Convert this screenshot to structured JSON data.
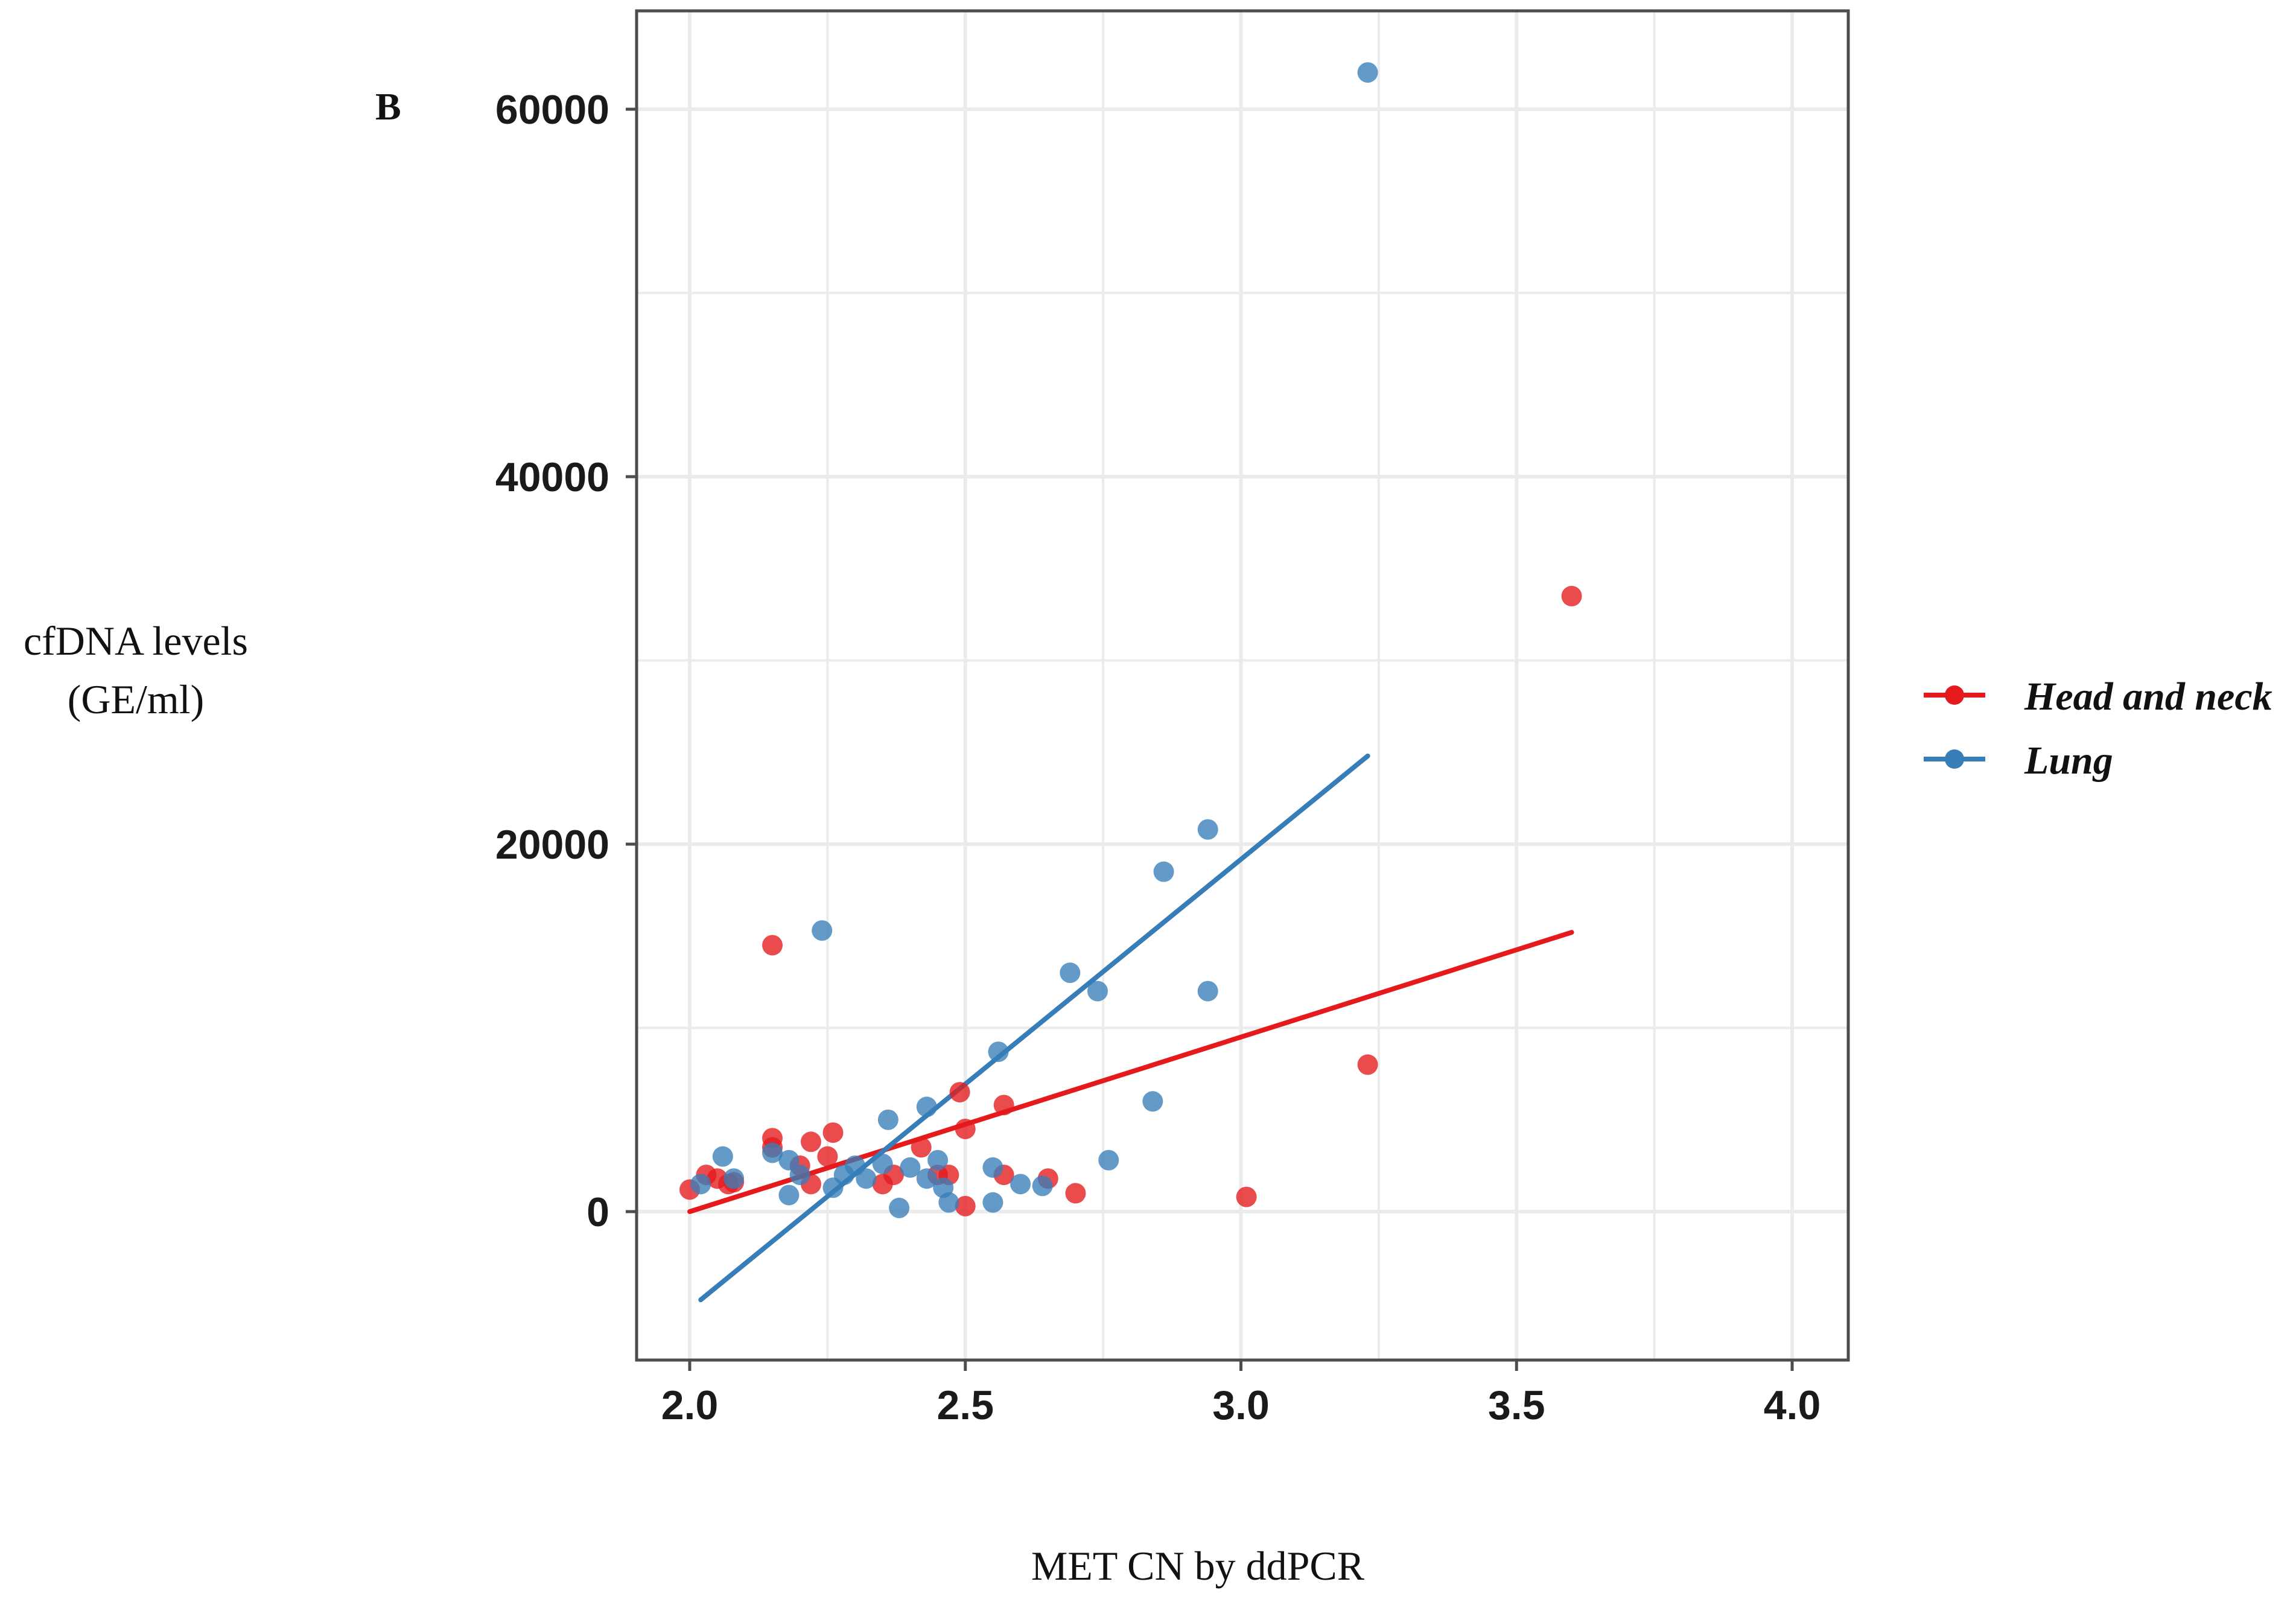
{
  "chart_data": {
    "type": "scatter",
    "panel_label": "B",
    "title": "",
    "xlabel": "MET CN by ddPCR",
    "ylabel_lines": [
      "cfDNA levels",
      "(GE/ml)"
    ],
    "xlim": [
      1.9,
      4.1
    ],
    "ylim": [
      -8000,
      65000
    ],
    "x_ticks": [
      2.0,
      2.5,
      3.0,
      3.5,
      4.0
    ],
    "x_tick_labels": [
      "2.0",
      "2.5",
      "3.0",
      "3.5",
      "4.0"
    ],
    "y_ticks": [
      0,
      20000,
      40000,
      60000
    ],
    "y_tick_labels": [
      "0",
      "20000",
      "40000",
      "60000"
    ],
    "grid": true,
    "legend_position": "right",
    "series": [
      {
        "name": "Head and neck",
        "color": "#E41A1C",
        "points": [
          [
            2.0,
            1200
          ],
          [
            2.03,
            2000
          ],
          [
            2.05,
            1800
          ],
          [
            2.07,
            1500
          ],
          [
            2.08,
            1600
          ],
          [
            2.15,
            14500
          ],
          [
            2.15,
            4000
          ],
          [
            2.15,
            3500
          ],
          [
            2.2,
            2500
          ],
          [
            2.22,
            3800
          ],
          [
            2.22,
            1500
          ],
          [
            2.25,
            3000
          ],
          [
            2.26,
            4300
          ],
          [
            2.35,
            1500
          ],
          [
            2.37,
            2000
          ],
          [
            2.42,
            3500
          ],
          [
            2.45,
            2000
          ],
          [
            2.47,
            2000
          ],
          [
            2.49,
            6500
          ],
          [
            2.5,
            4500
          ],
          [
            2.5,
            300
          ],
          [
            2.57,
            5800
          ],
          [
            2.57,
            2000
          ],
          [
            2.65,
            1800
          ],
          [
            2.7,
            1000
          ],
          [
            3.01,
            800
          ],
          [
            3.23,
            8000
          ],
          [
            3.6,
            33500
          ]
        ],
        "fit_line": [
          [
            2.0,
            0
          ],
          [
            3.6,
            15200
          ]
        ]
      },
      {
        "name": "Lung",
        "color": "#377EB8",
        "points": [
          [
            2.02,
            1500
          ],
          [
            2.06,
            3000
          ],
          [
            2.08,
            1800
          ],
          [
            2.15,
            3200
          ],
          [
            2.18,
            2800
          ],
          [
            2.18,
            900
          ],
          [
            2.2,
            2000
          ],
          [
            2.24,
            15300
          ],
          [
            2.26,
            1300
          ],
          [
            2.28,
            2000
          ],
          [
            2.3,
            2500
          ],
          [
            2.32,
            1800
          ],
          [
            2.35,
            2600
          ],
          [
            2.36,
            5000
          ],
          [
            2.38,
            200
          ],
          [
            2.4,
            2400
          ],
          [
            2.43,
            5700
          ],
          [
            2.43,
            1800
          ],
          [
            2.45,
            2800
          ],
          [
            2.46,
            1300
          ],
          [
            2.47,
            500
          ],
          [
            2.55,
            2400
          ],
          [
            2.55,
            500
          ],
          [
            2.56,
            8700
          ],
          [
            2.6,
            1500
          ],
          [
            2.64,
            1400
          ],
          [
            2.69,
            13000
          ],
          [
            2.74,
            12000
          ],
          [
            2.76,
            2800
          ],
          [
            2.84,
            6000
          ],
          [
            2.86,
            18500
          ],
          [
            2.94,
            20800
          ],
          [
            2.94,
            12000
          ],
          [
            3.23,
            62000
          ]
        ],
        "fit_line": [
          [
            2.02,
            -4800
          ],
          [
            3.23,
            24800
          ]
        ]
      }
    ]
  }
}
